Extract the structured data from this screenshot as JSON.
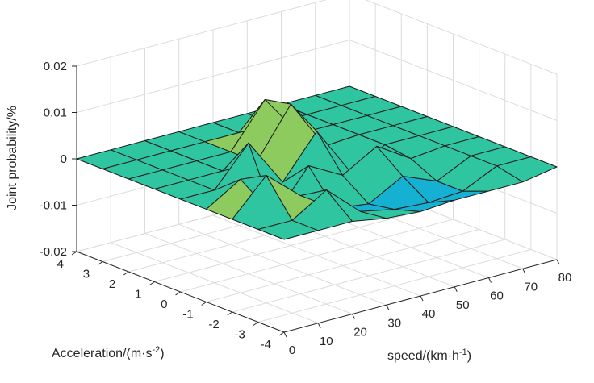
{
  "chart_data": {
    "type": "surface",
    "title": "",
    "zlabel": "Joint probability/%",
    "ylabel_text": "Acceleration/(m·s",
    "ylabel_sup": "-2",
    "ylabel_close": ")",
    "xlabel_text": "speed/(km·h",
    "xlabel_sup": "-1",
    "xlabel_close": ")",
    "xlim": [
      0,
      80
    ],
    "ylim": [
      -4,
      4
    ],
    "zlim": [
      -0.02,
      0.02
    ],
    "x_ticks": [
      "0",
      "10",
      "20",
      "30",
      "40",
      "50",
      "60",
      "70",
      "80"
    ],
    "y_ticks": [
      "-4",
      "-3",
      "-2",
      "-1",
      "0",
      "1",
      "2",
      "3",
      "4"
    ],
    "z_ticks": [
      "-0.02",
      "-0.01",
      "0",
      "0.01",
      "0.02"
    ],
    "x_tick_values": [
      0,
      10,
      20,
      30,
      40,
      50,
      60,
      70,
      80
    ],
    "y_tick_values": [
      -4,
      -3,
      -2,
      -1,
      0,
      1,
      2,
      3,
      4
    ],
    "z_tick_values": [
      -0.02,
      -0.01,
      0,
      0.01,
      0.02
    ],
    "grid": true,
    "colormap": [
      "#3d26a8",
      "#3a4ced",
      "#2e87f7",
      "#16b0d3",
      "#2ec5a0",
      "#8dcb5e",
      "#e0ba3f",
      "#fbdd1b",
      "#f9fb0e"
    ],
    "x": [
      0,
      10,
      20,
      30,
      40,
      50,
      60,
      70,
      80
    ],
    "y": [
      -4,
      -3,
      -2,
      -1,
      0,
      1,
      2,
      3,
      4
    ],
    "z": [
      [
        0,
        0,
        0,
        -0.0013,
        -0.0018,
        -0.0013,
        -0.0013,
        -0.0013,
        0
      ],
      [
        0,
        0,
        0.0046,
        -0.002,
        -0.0035,
        -0.004,
        -0.0035,
        0,
        0
      ],
      [
        0,
        0.0075,
        0.0012,
        -0.0035,
        -0.0045,
        -0.0005,
        -0.0035,
        0,
        0
      ],
      [
        0,
        0.0045,
        -0.0055,
        0.0035,
        -0.0005,
        0.0038,
        -0.0008,
        0,
        0
      ],
      [
        0,
        0,
        0.0082,
        -0.0022,
        0.0068,
        -0.004,
        0,
        0,
        0
      ],
      [
        0,
        0,
        0,
        0,
        0.0105,
        -0.0005,
        0,
        0,
        0
      ],
      [
        0,
        0,
        0,
        0,
        0.0093,
        0,
        0,
        0,
        0
      ],
      [
        0,
        0,
        0,
        0,
        0,
        0,
        0,
        0,
        0
      ],
      [
        0,
        0,
        0,
        0,
        0,
        0,
        0,
        0,
        0
      ]
    ]
  }
}
